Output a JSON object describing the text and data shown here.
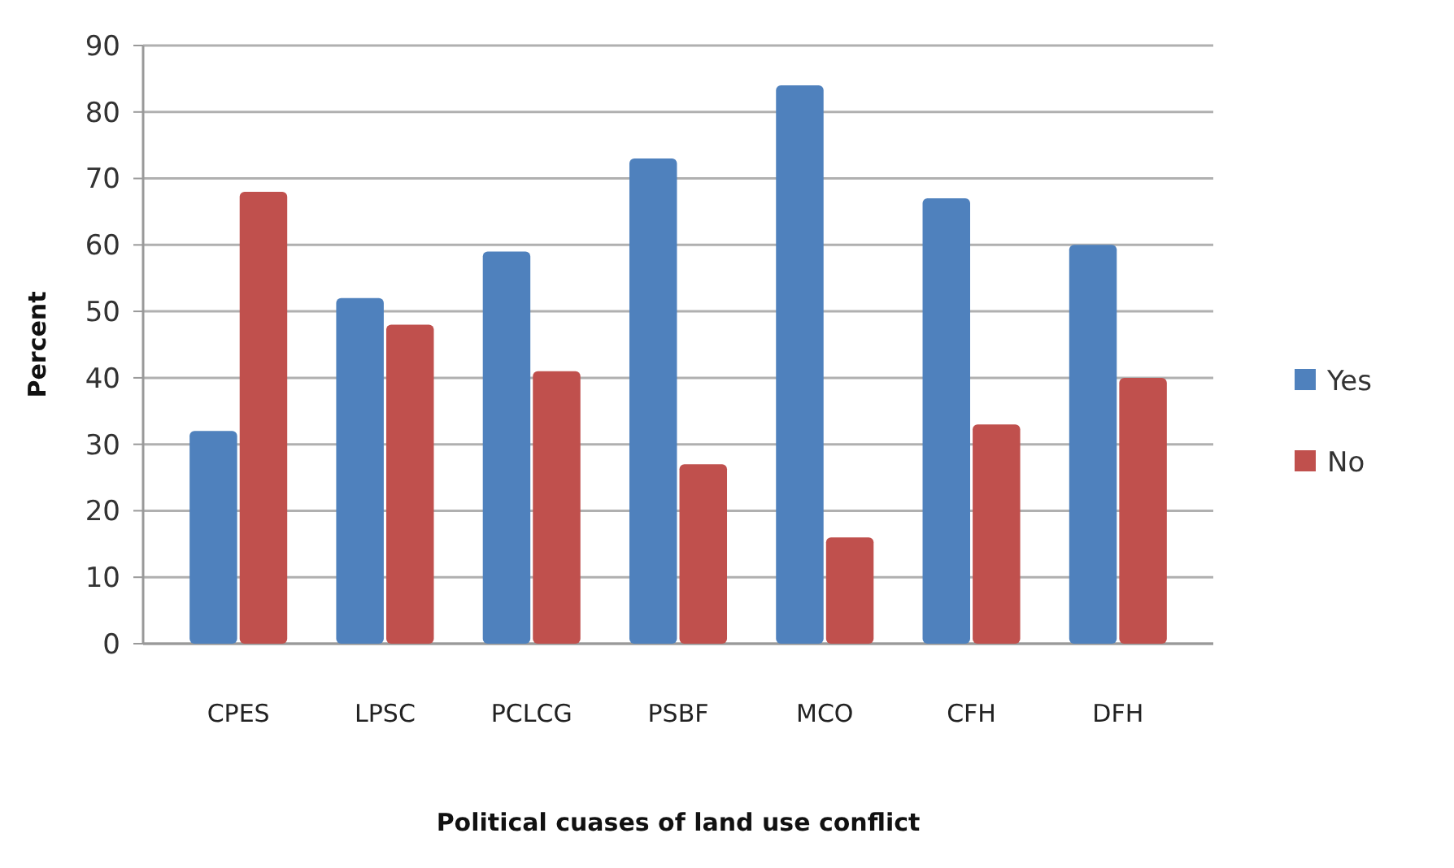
{
  "chart_data": {
    "type": "bar",
    "xlabel": "Political cuases of land use conflict",
    "ylabel": "Percent",
    "categories": [
      "CPES",
      "LPSC",
      "PCLCG",
      "PSBF",
      "MCO",
      "CFH",
      "DFH"
    ],
    "series": [
      {
        "name": "Yes",
        "color": "#4f81bd",
        "values": [
          32,
          52,
          59,
          73,
          84,
          67,
          60
        ]
      },
      {
        "name": "No",
        "color": "#c0504d",
        "values": [
          68,
          48,
          41,
          27,
          16,
          33,
          40
        ]
      }
    ],
    "ylim": [
      0,
      90
    ],
    "yticks": [
      0,
      10,
      20,
      30,
      40,
      50,
      60,
      70,
      80,
      90
    ],
    "grid": "y",
    "legend": "right"
  }
}
